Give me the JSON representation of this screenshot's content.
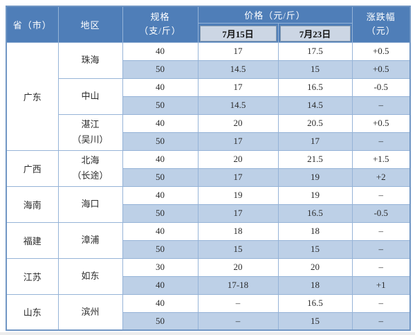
{
  "table": {
    "headers": {
      "province": "省（市）",
      "region": "地区",
      "spec_line1": "规格",
      "spec_line2": "（支/斤）",
      "price_group": "价格（元/斤）",
      "date1": "7月15日",
      "date2": "7月23日",
      "change_line1": "涨跌幅",
      "change_line2": "（元）"
    },
    "colors": {
      "header_bg": "#4f7eb8",
      "header_text": "#ffffff",
      "date_cell_bg": "#ccd6e4",
      "stripe_row_bg": "#bdd0e7",
      "grid_border": "#95b3d7",
      "outer_border": "#7096c4",
      "body_text": "#2b2b2b"
    },
    "groups": [
      {
        "province": "广东",
        "regions": [
          {
            "name_lines": [
              "珠海"
            ],
            "rows": [
              [
                "40",
                "17",
                "17.5",
                "+0.5"
              ],
              [
                "50",
                "14.5",
                "15",
                "+0.5"
              ]
            ]
          },
          {
            "name_lines": [
              "中山"
            ],
            "rows": [
              [
                "40",
                "17",
                "16.5",
                "-0.5"
              ],
              [
                "50",
                "14.5",
                "14.5",
                "–"
              ]
            ]
          },
          {
            "name_lines": [
              "湛江",
              "（吴川）"
            ],
            "rows": [
              [
                "40",
                "20",
                "20.5",
                "+0.5"
              ],
              [
                "50",
                "17",
                "17",
                "–"
              ]
            ]
          }
        ]
      },
      {
        "province": "广西",
        "regions": [
          {
            "name_lines": [
              "北海",
              "（长途）"
            ],
            "rows": [
              [
                "40",
                "20",
                "21.5",
                "+1.5"
              ],
              [
                "50",
                "17",
                "19",
                "+2"
              ]
            ]
          }
        ]
      },
      {
        "province": "海南",
        "regions": [
          {
            "name_lines": [
              "海口"
            ],
            "rows": [
              [
                "40",
                "19",
                "19",
                "–"
              ],
              [
                "50",
                "17",
                "16.5",
                "-0.5"
              ]
            ]
          }
        ]
      },
      {
        "province": "福建",
        "regions": [
          {
            "name_lines": [
              "漳浦"
            ],
            "rows": [
              [
                "40",
                "18",
                "18",
                "–"
              ],
              [
                "50",
                "15",
                "15",
                "–"
              ]
            ]
          }
        ]
      },
      {
        "province": "江苏",
        "regions": [
          {
            "name_lines": [
              "如东"
            ],
            "rows": [
              [
                "30",
                "20",
                "20",
                "–"
              ],
              [
                "40",
                "17-18",
                "18",
                "+1"
              ]
            ]
          }
        ]
      },
      {
        "province": "山东",
        "regions": [
          {
            "name_lines": [
              "滨州"
            ],
            "rows": [
              [
                "40",
                "–",
                "16.5",
                "–"
              ],
              [
                "50",
                "–",
                "15",
                "–"
              ]
            ]
          }
        ]
      }
    ]
  }
}
